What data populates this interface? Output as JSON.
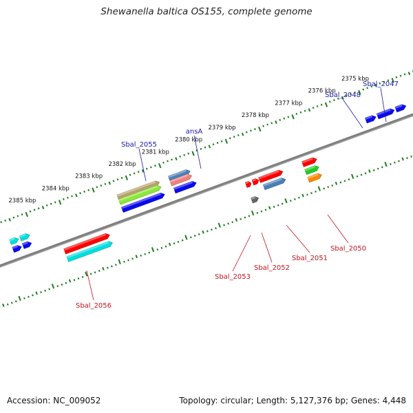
{
  "title": "Shewanella baltica OS155, complete genome",
  "footer": {
    "accession": "Accession: NC_009052",
    "info": "Topology: circular; Length: 5,127,376 bp; Genes: 4,448"
  },
  "colors": {
    "forward_label": "#1a1aa6",
    "reverse_label": "#c0141e",
    "tick": "#1e7a1e",
    "backbone": "#808080"
  },
  "scale_labels": [
    {
      "kbp": 2385,
      "text": "2385 kbp"
    },
    {
      "kbp": 2384,
      "text": "2384 kbp"
    },
    {
      "kbp": 2383,
      "text": "2383 kbp"
    },
    {
      "kbp": 2382,
      "text": "2382 kbp"
    },
    {
      "kbp": 2381,
      "text": "2381 kbp"
    },
    {
      "kbp": 2380,
      "text": "2380 kbp"
    },
    {
      "kbp": 2379,
      "text": "2379 kbp"
    },
    {
      "kbp": 2378,
      "text": "2378 kbp"
    },
    {
      "kbp": 2377,
      "text": "2377 kbp"
    },
    {
      "kbp": 2376,
      "text": "2376 kbp"
    },
    {
      "kbp": 2375,
      "text": "2375 kbp"
    }
  ],
  "gene_labels": [
    {
      "name": "Sbal_2047",
      "strand": "forward"
    },
    {
      "name": "Sbal_2048",
      "strand": "forward"
    },
    {
      "name": "ansA",
      "strand": "forward"
    },
    {
      "name": "Sbal_2055",
      "strand": "forward"
    },
    {
      "name": "Sbal_2050",
      "strand": "reverse"
    },
    {
      "name": "Sbal_2051",
      "strand": "reverse"
    },
    {
      "name": "Sbal_2052",
      "strand": "reverse"
    },
    {
      "name": "Sbal_2053",
      "strand": "reverse"
    },
    {
      "name": "Sbal_2056",
      "strand": "reverse"
    }
  ],
  "features": [
    {
      "track": "forward",
      "start_kbp": 2385.7,
      "end_kbp": 2385.45,
      "color": "#00dede",
      "row": 1
    },
    {
      "track": "forward",
      "start_kbp": 2385.4,
      "end_kbp": 2385.12,
      "color": "#00dede",
      "row": 1
    },
    {
      "track": "forward",
      "start_kbp": 2385.7,
      "end_kbp": 2385.45,
      "color": "#0a0af0",
      "row": 2
    },
    {
      "track": "forward",
      "start_kbp": 2385.4,
      "end_kbp": 2385.15,
      "color": "#0a0af0",
      "row": 2
    },
    {
      "track": "forward",
      "start_kbp": 2382.42,
      "end_kbp": 2381.17,
      "color": "#b5a26a",
      "row": 0
    },
    {
      "track": "forward",
      "start_kbp": 2382.42,
      "end_kbp": 2381.17,
      "color": "#8ee63c",
      "row": 1
    },
    {
      "track": "forward",
      "start_kbp": 2382.42,
      "end_kbp": 2381.15,
      "color": "#0a0af0",
      "row": 2
    },
    {
      "track": "forward",
      "start_kbp": 2380.88,
      "end_kbp": 2380.25,
      "color": "#4a7fb5",
      "row": 0
    },
    {
      "track": "forward",
      "start_kbp": 2380.88,
      "end_kbp": 2380.25,
      "color": "#f08080",
      "row": 1
    },
    {
      "track": "forward",
      "start_kbp": 2380.85,
      "end_kbp": 2380.2,
      "color": "#0a0af0",
      "row": 2
    },
    {
      "track": "forward",
      "start_kbp": 2375.1,
      "end_kbp": 2374.8,
      "color": "#0a0af0",
      "row": 2
    },
    {
      "track": "forward",
      "start_kbp": 2374.75,
      "end_kbp": 2374.25,
      "color": "#0a0af0",
      "row": 2
    },
    {
      "track": "forward",
      "start_kbp": 2374.2,
      "end_kbp": 2373.9,
      "color": "#0a0af0",
      "row": 2
    },
    {
      "track": "reverse",
      "start_kbp": 2378.9,
      "end_kbp": 2378.75,
      "color": "#ff0000",
      "row": 0
    },
    {
      "track": "reverse",
      "start_kbp": 2378.7,
      "end_kbp": 2378.52,
      "color": "#ff0000",
      "row": 0
    },
    {
      "track": "reverse",
      "start_kbp": 2378.5,
      "end_kbp": 2377.8,
      "color": "#ff0000",
      "row": 0
    },
    {
      "track": "reverse",
      "start_kbp": 2377.2,
      "end_kbp": 2376.78,
      "color": "#ff0000",
      "row": 0
    },
    {
      "track": "reverse",
      "start_kbp": 2377.2,
      "end_kbp": 2376.8,
      "color": "#22cc22",
      "row": 1
    },
    {
      "track": "reverse",
      "start_kbp": 2377.2,
      "end_kbp": 2376.8,
      "color": "#ff8800",
      "row": 2
    },
    {
      "track": "reverse",
      "start_kbp": 2378.45,
      "end_kbp": 2377.8,
      "color": "#4a7fb5",
      "row": 1
    },
    {
      "track": "reverse",
      "start_kbp": 2378.9,
      "end_kbp": 2378.7,
      "color": "#666666",
      "row": 2
    },
    {
      "track": "reverse",
      "start_kbp": 2384.35,
      "end_kbp": 2383.0,
      "color": "#ff0000",
      "row": 0
    },
    {
      "track": "reverse",
      "start_kbp": 2384.35,
      "end_kbp": 2383.0,
      "color": "#00dede",
      "row": 1
    }
  ]
}
